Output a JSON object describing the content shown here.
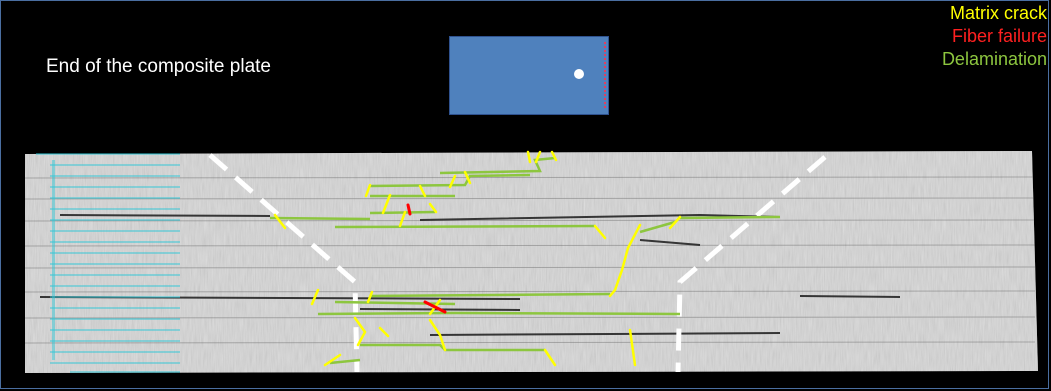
{
  "caption": "End of the composite plate",
  "legend": [
    {
      "label": "Matrix crack",
      "color": "#ffff00"
    },
    {
      "label": "Fiber failure",
      "color": "#ff0000"
    },
    {
      "label": "Delamination",
      "color": "#8dc63f"
    }
  ],
  "colors": {
    "background": "#000000",
    "plate": "#4f81bd",
    "plate_edge": "#2f528f",
    "hole": "#ffffff",
    "matrix_crack": "#ffff00",
    "fiber_failure": "#ff0000",
    "delamination": "#8dc63f",
    "ply_lines": "#35c7d6",
    "guide_lines": "#ffffff"
  }
}
